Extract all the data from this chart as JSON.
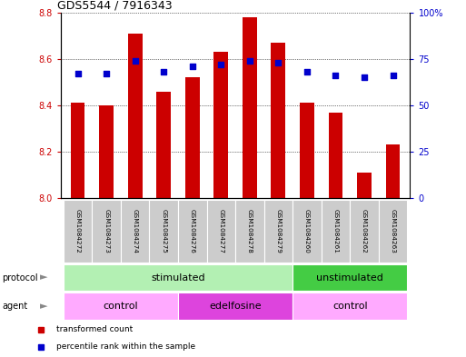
{
  "title": "GDS5544 / 7916343",
  "samples": [
    "GSM1084272",
    "GSM1084273",
    "GSM1084274",
    "GSM1084275",
    "GSM1084276",
    "GSM1084277",
    "GSM1084278",
    "GSM1084279",
    "GSM1084260",
    "GSM1084261",
    "GSM1084262",
    "GSM1084263"
  ],
  "bar_values": [
    8.41,
    8.4,
    8.71,
    8.46,
    8.52,
    8.63,
    8.78,
    8.67,
    8.41,
    8.37,
    8.11,
    8.23
  ],
  "dot_values": [
    67,
    67,
    74,
    68,
    71,
    72,
    74,
    73,
    68,
    66,
    65,
    66
  ],
  "ylim_left": [
    8.0,
    8.8
  ],
  "ylim_right": [
    0,
    100
  ],
  "yticks_left": [
    8.0,
    8.2,
    8.4,
    8.6,
    8.8
  ],
  "yticks_right": [
    0,
    25,
    50,
    75,
    100
  ],
  "bar_color": "#cc0000",
  "dot_color": "#0000cc",
  "bar_width": 0.5,
  "protocol_labels": [
    {
      "text": "stimulated",
      "start": 0,
      "end": 7,
      "color": "#b3f0b3"
    },
    {
      "text": "unstimulated",
      "start": 8,
      "end": 11,
      "color": "#44cc44"
    }
  ],
  "agent_labels": [
    {
      "text": "control",
      "start": 0,
      "end": 3,
      "color": "#ffaaff"
    },
    {
      "text": "edelfosine",
      "start": 4,
      "end": 7,
      "color": "#dd44dd"
    },
    {
      "text": "control",
      "start": 8,
      "end": 11,
      "color": "#ffaaff"
    }
  ],
  "legend_items": [
    {
      "label": "transformed count",
      "color": "#cc0000"
    },
    {
      "label": "percentile rank within the sample",
      "color": "#0000cc"
    }
  ],
  "bg_color": "#ffffff",
  "left_axis_color": "#cc0000",
  "right_axis_color": "#0000cc",
  "sample_box_color": "#cccccc",
  "arrow_color": "#888888"
}
